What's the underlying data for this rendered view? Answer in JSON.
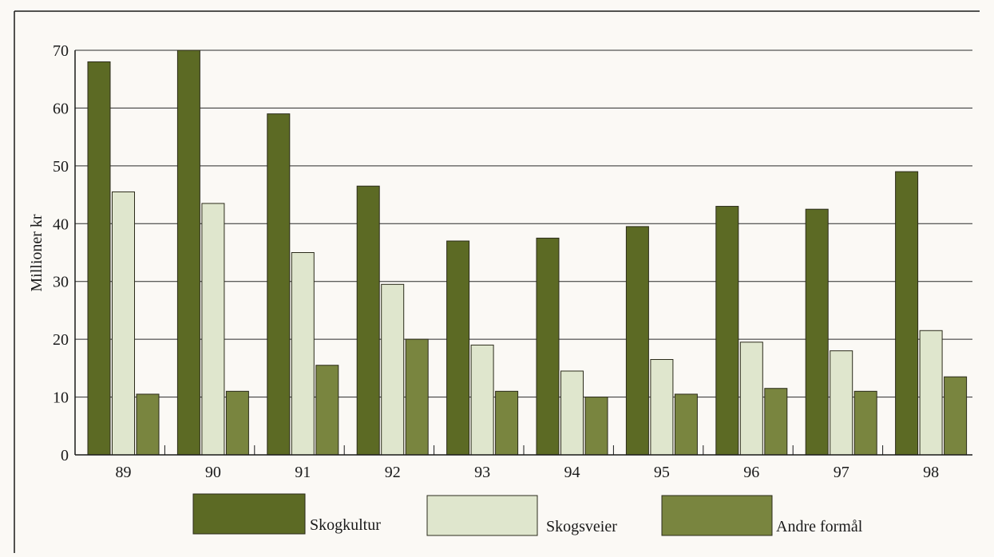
{
  "chart_data": {
    "type": "bar",
    "ylabel": "Millioner kr",
    "ylim": [
      0,
      70
    ],
    "yticks": [
      0,
      10,
      20,
      30,
      40,
      50,
      60,
      70
    ],
    "grid": "horizontal",
    "legend_position": "bottom",
    "categories": [
      "89",
      "90",
      "91",
      "92",
      "93",
      "94",
      "95",
      "96",
      "97",
      "98"
    ],
    "series": [
      {
        "name": "Skogkultur",
        "color": "#5c6a24",
        "values": [
          68,
          70,
          59,
          46.5,
          37,
          37.5,
          39.5,
          43,
          42.5,
          49
        ]
      },
      {
        "name": "Skogsveier",
        "color": "#dfe6cd",
        "values": [
          45.5,
          43.5,
          35,
          29.5,
          19,
          14.5,
          16.5,
          19.5,
          18,
          21.5
        ]
      },
      {
        "name": "Andre formål",
        "color": "#79853f",
        "values": [
          10.5,
          11,
          15.5,
          20,
          11,
          10,
          10.5,
          11.5,
          11,
          13.5
        ]
      }
    ]
  }
}
